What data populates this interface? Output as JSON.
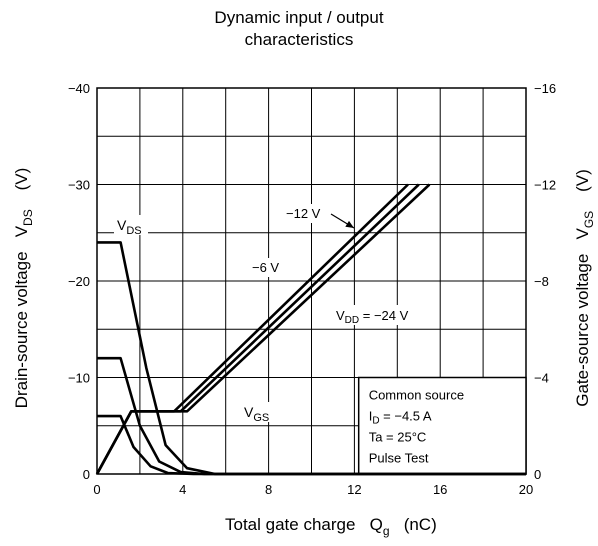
{
  "chart_data": {
    "type": "line",
    "title_lines": [
      "Dynamic input / output",
      "characteristics"
    ],
    "xlabel": "Total gate charge",
    "xlabel_symbol": "Q",
    "xlabel_sub": "g",
    "xlabel_unit": "(nC)",
    "ylabel_left": "Drain-source voltage",
    "ylabel_left_symbol": "V",
    "ylabel_left_sub": "DS",
    "ylabel_left_unit": "(V)",
    "ylabel_right": "Gate-source voltage",
    "ylabel_right_symbol": "V",
    "ylabel_right_sub": "GS",
    "ylabel_right_unit": "(V)",
    "xlim": [
      0,
      20
    ],
    "ylim_left": [
      0,
      -40
    ],
    "ylim_right": [
      0,
      -16
    ],
    "x_ticks": [
      "0",
      "4",
      "8",
      "12",
      "16",
      "20"
    ],
    "y_left_ticks": [
      "0",
      "−10",
      "−20",
      "−30",
      "−40"
    ],
    "y_right_ticks": [
      "0",
      "−4",
      "−8",
      "−12",
      "−16"
    ],
    "grid": true,
    "vds_series": [
      {
        "name": "VDD = −24 V",
        "axis": "left",
        "points": [
          [
            0,
            -24
          ],
          [
            1.1,
            -24
          ],
          [
            2.3,
            -11
          ],
          [
            3.2,
            -3
          ],
          [
            4.2,
            -0.6
          ],
          [
            5.5,
            0
          ],
          [
            20,
            0
          ]
        ]
      },
      {
        "name": "−12 V",
        "axis": "left",
        "points": [
          [
            0,
            -12
          ],
          [
            1.1,
            -12
          ],
          [
            2.0,
            -5
          ],
          [
            2.9,
            -1.3
          ],
          [
            3.9,
            -0.2
          ],
          [
            5.0,
            0
          ],
          [
            20,
            0
          ]
        ]
      },
      {
        "name": "−6 V",
        "axis": "left",
        "points": [
          [
            0,
            -6
          ],
          [
            1.1,
            -6
          ],
          [
            1.7,
            -2.8
          ],
          [
            2.5,
            -0.8
          ],
          [
            3.3,
            -0.1
          ],
          [
            4.5,
            0
          ],
          [
            20,
            0
          ]
        ]
      }
    ],
    "vgs_series": [
      {
        "name": "VDD = −24 V",
        "axis": "right",
        "points": [
          [
            0,
            0
          ],
          [
            1.6,
            -2.6
          ],
          [
            4.2,
            -2.6
          ],
          [
            15.5,
            -12
          ]
        ]
      },
      {
        "name": "−12 V",
        "axis": "right",
        "points": [
          [
            0,
            0
          ],
          [
            1.6,
            -2.6
          ],
          [
            3.9,
            -2.6
          ],
          [
            15.0,
            -12
          ]
        ]
      },
      {
        "name": "−6 V",
        "axis": "right",
        "points": [
          [
            0,
            0
          ],
          [
            1.6,
            -2.6
          ],
          [
            3.6,
            -2.6
          ],
          [
            14.5,
            -12
          ]
        ]
      }
    ],
    "annotations": {
      "vds_label": "V",
      "vds_label_sub": "DS",
      "vgs_label": "V",
      "vgs_label_sub": "GS",
      "m12_label": "−12 V",
      "m6_label": "−6 V",
      "vdd_label_main": "V",
      "vdd_label_sub": "DD",
      "vdd_label_rest": " = −24 V"
    },
    "legend_box": {
      "line1": "Common source",
      "line2_main": "I",
      "line2_sub": "D",
      "line2_rest": " = −4.5 A",
      "line3": "Ta = 25°C",
      "line4": "Pulse Test"
    }
  }
}
